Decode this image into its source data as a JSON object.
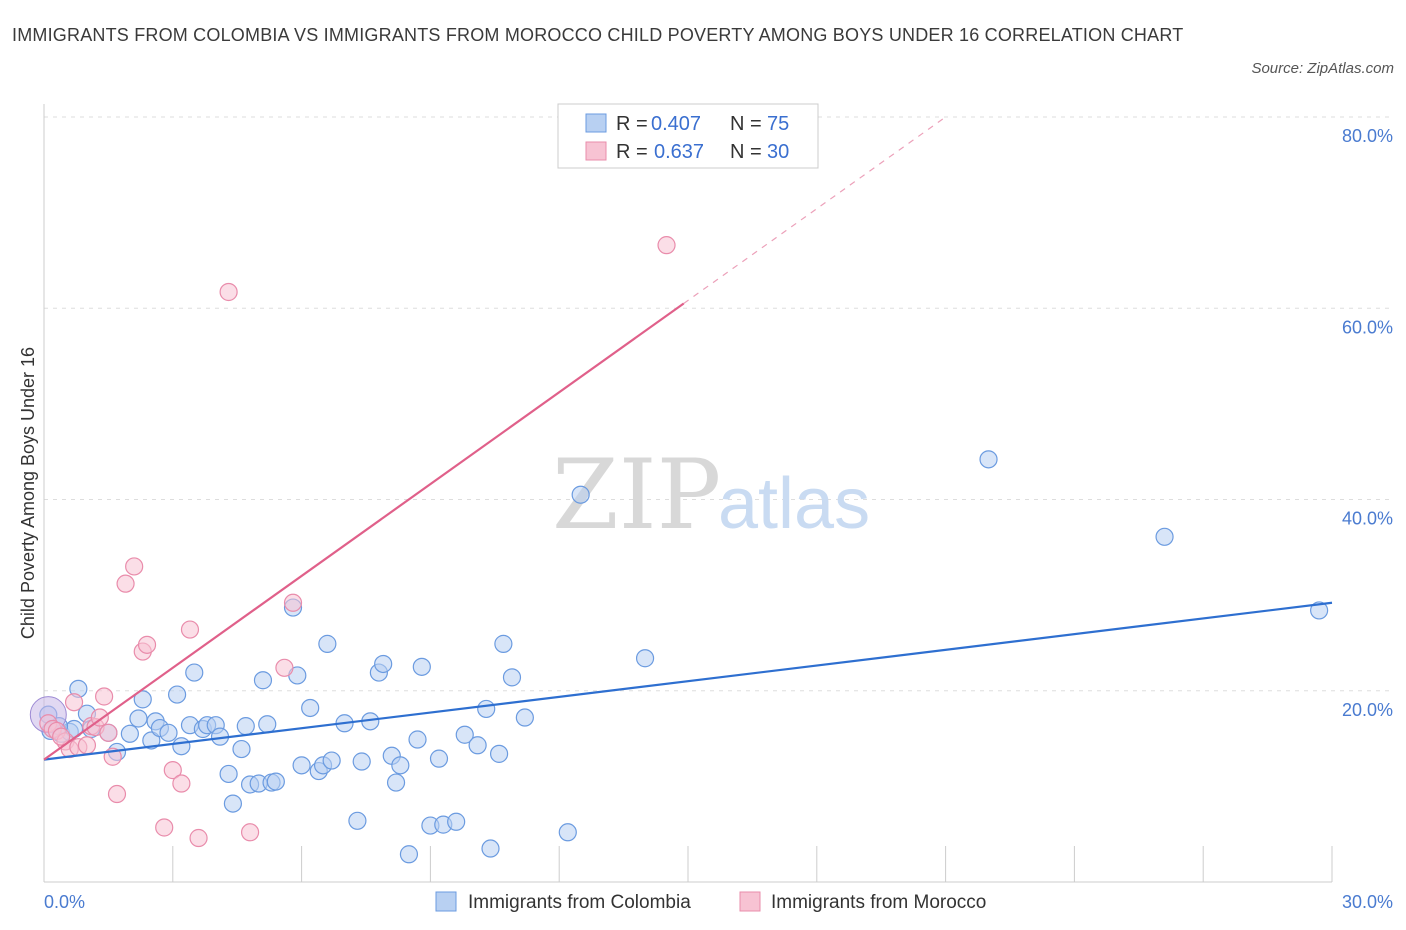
{
  "title": "IMMIGRANTS FROM COLOMBIA VS IMMIGRANTS FROM MOROCCO CHILD POVERTY AMONG BOYS UNDER 16 CORRELATION CHART",
  "source": "Source: ZipAtlas.com",
  "watermark": {
    "zip": "ZIP",
    "atlas": "atlas"
  },
  "colors": {
    "colombia_fill": "#b8d0f2",
    "colombia_stroke": "#6b9be0",
    "colombia_line": "#2e6fd0",
    "morocco_fill": "#f7c3d3",
    "morocco_stroke": "#e98cab",
    "morocco_line": "#e0608a",
    "tick": "#4a7bd0",
    "grid": "#dddddd"
  },
  "legend": {
    "rows": [
      {
        "r_label": "R =",
        "r_value": "0.407",
        "n_label": "N =",
        "n_value": "75"
      },
      {
        "r_label": "R =",
        "r_value": "0.637",
        "n_label": "N =",
        "n_value": "30"
      }
    ]
  },
  "chart_data": {
    "type": "scatter",
    "title": "IMMIGRANTS FROM COLOMBIA VS IMMIGRANTS FROM MOROCCO CHILD POVERTY AMONG BOYS UNDER 16 CORRELATION CHART",
    "xlabel": "",
    "ylabel": "Child Poverty Among Boys Under 16",
    "xlim": [
      0,
      30
    ],
    "ylim": [
      0,
      80
    ],
    "x_tick_labels": [
      "0.0%",
      "30.0%"
    ],
    "y_tick_labels": [
      "20.0%",
      "40.0%",
      "60.0%",
      "80.0%"
    ],
    "y_ticks": [
      20,
      40,
      60,
      80
    ],
    "grid": true,
    "legend_position": "bottom",
    "series": [
      {
        "name": "Immigrants from Colombia",
        "R": 0.407,
        "N": 75,
        "trend": {
          "x": [
            0,
            30
          ],
          "y": [
            12.8,
            29.2
          ],
          "dashed_extension": false
        },
        "points": [
          [
            0.1,
            17.5
          ],
          [
            0.2,
            16.0
          ],
          [
            0.4,
            15.5
          ],
          [
            0.6,
            15.7
          ],
          [
            0.7,
            16.0
          ],
          [
            0.8,
            20.2
          ],
          [
            1.0,
            17.6
          ],
          [
            1.1,
            16.0
          ],
          [
            1.5,
            15.6
          ],
          [
            1.7,
            13.6
          ],
          [
            2.0,
            15.5
          ],
          [
            2.2,
            17.1
          ],
          [
            2.3,
            19.1
          ],
          [
            2.5,
            14.8
          ],
          [
            2.6,
            16.8
          ],
          [
            2.7,
            16.1
          ],
          [
            2.9,
            15.6
          ],
          [
            3.1,
            19.6
          ],
          [
            3.2,
            14.2
          ],
          [
            3.4,
            16.4
          ],
          [
            3.5,
            21.9
          ],
          [
            3.7,
            16.0
          ],
          [
            3.8,
            16.4
          ],
          [
            4.0,
            16.4
          ],
          [
            4.1,
            15.2
          ],
          [
            4.3,
            11.3
          ],
          [
            4.4,
            8.2
          ],
          [
            4.6,
            13.9
          ],
          [
            4.7,
            16.3
          ],
          [
            4.8,
            10.2
          ],
          [
            5.0,
            10.3
          ],
          [
            5.1,
            21.1
          ],
          [
            5.2,
            16.5
          ],
          [
            5.3,
            10.4
          ],
          [
            5.4,
            10.5
          ],
          [
            5.8,
            28.7
          ],
          [
            5.9,
            21.6
          ],
          [
            6.0,
            12.2
          ],
          [
            6.2,
            18.2
          ],
          [
            6.4,
            11.6
          ],
          [
            6.5,
            12.2
          ],
          [
            6.6,
            24.9
          ],
          [
            6.7,
            12.7
          ],
          [
            7.0,
            16.6
          ],
          [
            7.3,
            6.4
          ],
          [
            7.4,
            12.6
          ],
          [
            7.6,
            16.8
          ],
          [
            7.8,
            21.9
          ],
          [
            7.9,
            22.8
          ],
          [
            8.1,
            13.2
          ],
          [
            8.2,
            10.4
          ],
          [
            8.3,
            12.2
          ],
          [
            8.5,
            2.9
          ],
          [
            8.7,
            14.9
          ],
          [
            8.8,
            22.5
          ],
          [
            9.0,
            5.9
          ],
          [
            9.2,
            12.9
          ],
          [
            9.3,
            6.0
          ],
          [
            9.6,
            6.3
          ],
          [
            9.8,
            15.4
          ],
          [
            10.1,
            14.3
          ],
          [
            10.3,
            18.1
          ],
          [
            10.4,
            3.5
          ],
          [
            10.6,
            13.4
          ],
          [
            10.7,
            24.9
          ],
          [
            10.9,
            21.4
          ],
          [
            11.2,
            17.2
          ],
          [
            12.2,
            5.2
          ],
          [
            12.5,
            40.5
          ],
          [
            14.0,
            23.4
          ],
          [
            22.0,
            44.2
          ],
          [
            26.1,
            36.1
          ],
          [
            29.7,
            28.4
          ],
          [
            0.15,
            15.8
          ],
          [
            0.35,
            16.3
          ]
        ]
      },
      {
        "name": "Immigrants from Morocco",
        "R": 0.637,
        "N": 30,
        "trend": {
          "x": [
            0,
            14.9
          ],
          "y": [
            12.8,
            60.5
          ],
          "dashed_extension": {
            "x": [
              14.9,
              21.0
            ],
            "y": [
              60.5,
              80.0
            ]
          }
        },
        "points": [
          [
            0.1,
            16.6
          ],
          [
            0.2,
            16.0
          ],
          [
            0.3,
            15.8
          ],
          [
            0.5,
            14.7
          ],
          [
            0.6,
            13.9
          ],
          [
            0.7,
            18.8
          ],
          [
            0.8,
            14.1
          ],
          [
            1.0,
            14.3
          ],
          [
            1.1,
            16.3
          ],
          [
            1.2,
            16.2
          ],
          [
            1.3,
            17.2
          ],
          [
            1.4,
            19.4
          ],
          [
            1.5,
            15.6
          ],
          [
            1.6,
            13.1
          ],
          [
            1.7,
            9.2
          ],
          [
            1.9,
            31.2
          ],
          [
            2.1,
            33.0
          ],
          [
            2.3,
            24.1
          ],
          [
            2.4,
            24.8
          ],
          [
            2.8,
            5.7
          ],
          [
            3.0,
            11.7
          ],
          [
            3.2,
            10.3
          ],
          [
            3.4,
            26.4
          ],
          [
            3.6,
            4.6
          ],
          [
            4.3,
            61.7
          ],
          [
            4.8,
            5.2
          ],
          [
            5.6,
            22.4
          ],
          [
            5.8,
            29.2
          ],
          [
            14.5,
            66.6
          ],
          [
            0.4,
            15.2
          ]
        ]
      }
    ]
  },
  "bottom_legend": {
    "items": [
      {
        "label": "Immigrants from Colombia"
      },
      {
        "label": "Immigrants from Morocco"
      }
    ]
  }
}
